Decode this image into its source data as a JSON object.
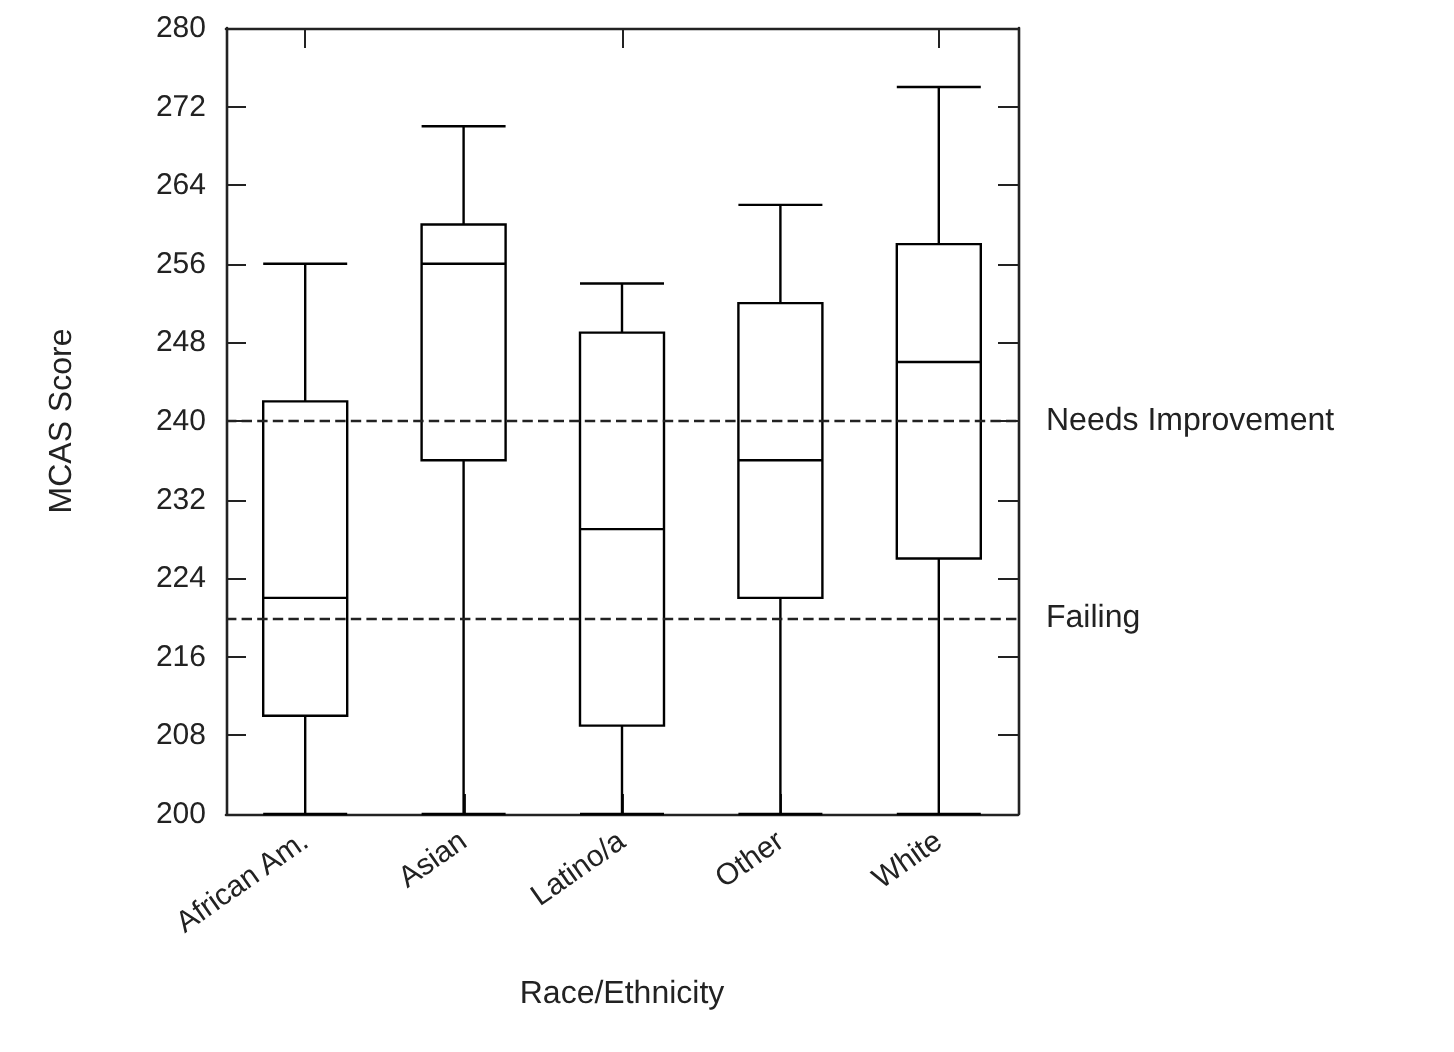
{
  "chart_data": {
    "type": "box",
    "xlabel": "Race/Ethnicity",
    "ylabel": "MCAS Score",
    "categories": [
      "African Am.",
      "Asian",
      "Latino/a",
      "Other",
      "White"
    ],
    "boxes": [
      {
        "low": 200,
        "q1": 210,
        "median": 222,
        "q3": 242,
        "high": 256
      },
      {
        "low": 200,
        "q1": 236,
        "median": 256,
        "q3": 260,
        "high": 270
      },
      {
        "low": 200,
        "q1": 209,
        "median": 229,
        "q3": 249,
        "high": 254
      },
      {
        "low": 200,
        "q1": 222,
        "median": 236,
        "q3": 252,
        "high": 262
      },
      {
        "low": 200,
        "q1": 226,
        "median": 246,
        "q3": 258,
        "high": 274
      }
    ],
    "color": "#000000",
    "ylim": [
      200,
      280
    ],
    "yticks": [
      200,
      208,
      216,
      224,
      232,
      240,
      248,
      256,
      264,
      272,
      280
    ],
    "ref_lines": [
      {
        "axis": "y",
        "value": 240,
        "label": "Needs Improvement",
        "line_style": "dashed"
      },
      {
        "axis": "y",
        "value": 220,
        "label": "Failing",
        "line_style": "dashed"
      }
    ],
    "grid": false
  }
}
